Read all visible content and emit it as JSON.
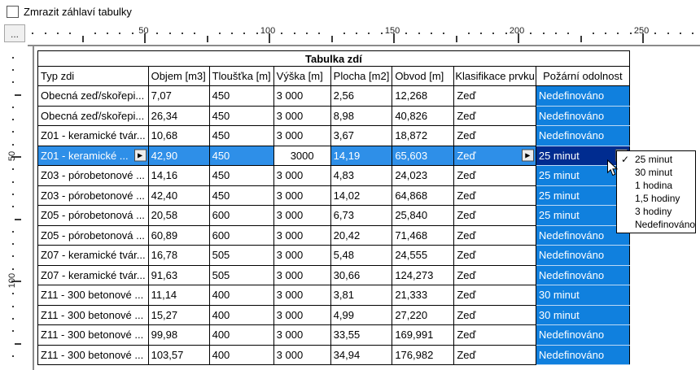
{
  "controls": {
    "freeze_checkbox_label": "Zmrazit záhlaví tabulky",
    "freeze_checkbox_checked": false,
    "ruler_options_button": "..."
  },
  "rulers": {
    "h_labels": [
      "50",
      "100",
      "150",
      "200",
      "250"
    ],
    "v_labels": [
      "50",
      "100"
    ]
  },
  "table": {
    "title": "Tabulka zdí",
    "columns": [
      "Typ zdi",
      "Objem [m3]",
      "Tloušťka [m]",
      "Výška [m]",
      "Plocha [m2]",
      "Obvod [m]",
      "Klasifikace prvku",
      "Požární odolnost"
    ],
    "rows": [
      [
        "Obecná zeď/skořepi...",
        "7,07",
        "450",
        "3 000",
        "2,56",
        "12,268",
        "Zeď",
        "Nedefinováno"
      ],
      [
        "Obecná zeď/skořepi...",
        "26,34",
        "450",
        "3 000",
        "8,98",
        "40,826",
        "Zeď",
        "Nedefinováno"
      ],
      [
        "Z01 - keramické tvár...",
        "10,68",
        "450",
        "3 000",
        "3,67",
        "18,872",
        "Zeď",
        "Nedefinováno"
      ],
      [
        "Z01 - keramické ...",
        "42,90",
        "450",
        "3000",
        "14,19",
        "65,603",
        "Zeď",
        "25 minut"
      ],
      [
        "Z03 - pórobetonové ...",
        "14,16",
        "450",
        "3 000",
        "4,83",
        "24,023",
        "Zeď",
        "25 minut"
      ],
      [
        "Z03 - pórobetonové ...",
        "42,40",
        "450",
        "3 000",
        "14,02",
        "64,868",
        "Zeď",
        "25 minut"
      ],
      [
        "Z05 - pórobetonová ...",
        "20,58",
        "600",
        "3 000",
        "6,73",
        "25,840",
        "Zeď",
        "25 minut"
      ],
      [
        "Z05 - pórobetonová ...",
        "60,89",
        "600",
        "3 000",
        "20,42",
        "71,468",
        "Zeď",
        "Nedefinováno"
      ],
      [
        "Z07 - keramické tvár...",
        "16,78",
        "505",
        "3 000",
        "5,48",
        "24,555",
        "Zeď",
        "Nedefinováno"
      ],
      [
        "Z07 - keramické tvár...",
        "91,63",
        "505",
        "3 000",
        "30,66",
        "124,273",
        "Zeď",
        "Nedefinováno"
      ],
      [
        "Z11 - 300 betonové ...",
        "11,14",
        "400",
        "3 000",
        "3,81",
        "21,333",
        "Zeď",
        "30 minut"
      ],
      [
        "Z11 - 300 betonové ...",
        "15,27",
        "400",
        "3 000",
        "4,99",
        "27,220",
        "Zeď",
        "30 minut"
      ],
      [
        "Z11 - 300 betonové ...",
        "99,98",
        "400",
        "3 000",
        "33,55",
        "169,991",
        "Zeď",
        "Nedefinováno"
      ],
      [
        "Z11 - 300 betonové ...",
        "103,57",
        "400",
        "3 000",
        "34,94",
        "176,982",
        "Zeď",
        "Nedefinováno"
      ]
    ],
    "selected_row_index": 3,
    "editing_cell": {
      "row": 3,
      "col": 3,
      "value": "3000"
    }
  },
  "dropdown": {
    "items": [
      "25 minut",
      "30 minut",
      "1 hodina",
      "1,5 hodiny",
      "3 hodiny",
      "Nedefinováno"
    ],
    "checked_index": 0,
    "check_glyph": "✓"
  },
  "colors": {
    "fire_column_bg": "#1080DE",
    "selected_row_bg": "#2E8FE8",
    "selected_fire_cell_bg": "#002C90"
  }
}
